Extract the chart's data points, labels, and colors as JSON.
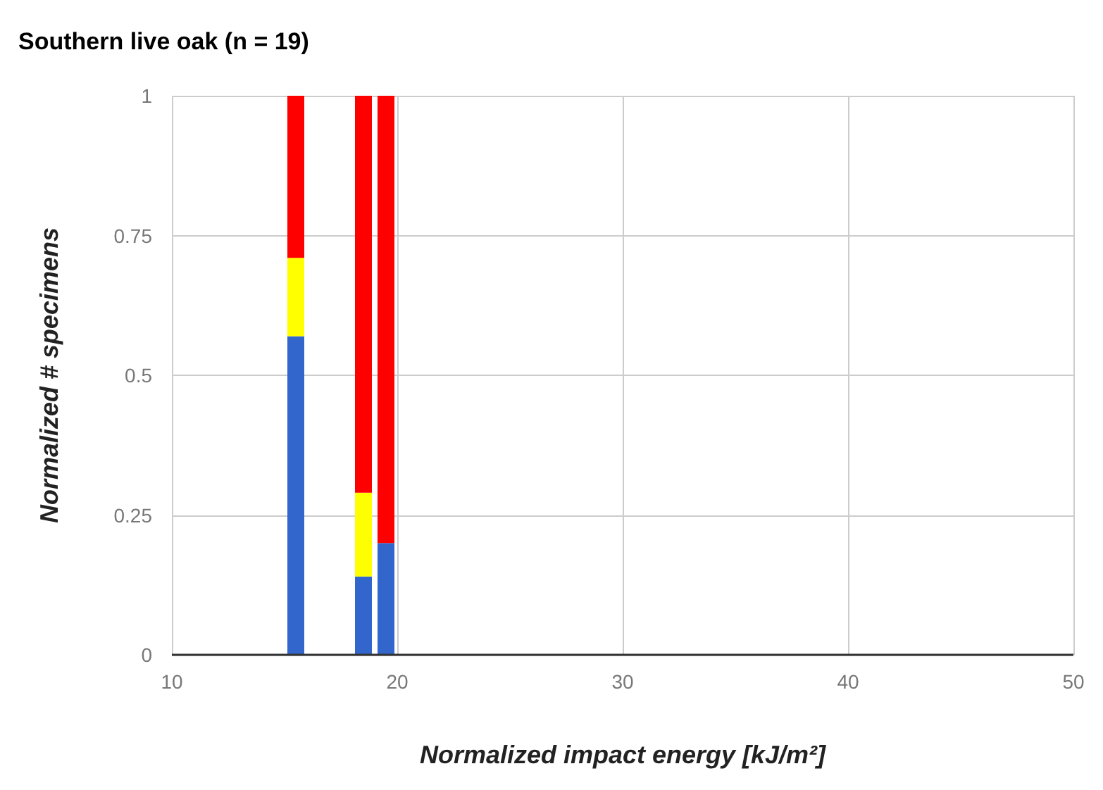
{
  "chart_data": {
    "type": "bar",
    "title": "Southern live oak (n = 19)",
    "xlabel": "Normalized impact energy [kJ/m²]",
    "ylabel": "Normalized # specimens",
    "x": [
      15.5,
      18.5,
      19.5
    ],
    "stacked": true,
    "series": [
      {
        "color": "#3366cc",
        "values": [
          0.57,
          0.14,
          0.2
        ]
      },
      {
        "color": "#ffff00",
        "values": [
          0.14,
          0.15,
          0
        ]
      },
      {
        "color": "#ff0000",
        "values": [
          0.29,
          0.71,
          0.8
        ]
      }
    ],
    "xlim": [
      10,
      50
    ],
    "xticks": [
      10,
      20,
      30,
      40,
      50
    ],
    "ylim": [
      0,
      1
    ],
    "yticks": [
      0,
      0.25,
      0.5,
      0.75,
      1
    ],
    "grid": true
  }
}
